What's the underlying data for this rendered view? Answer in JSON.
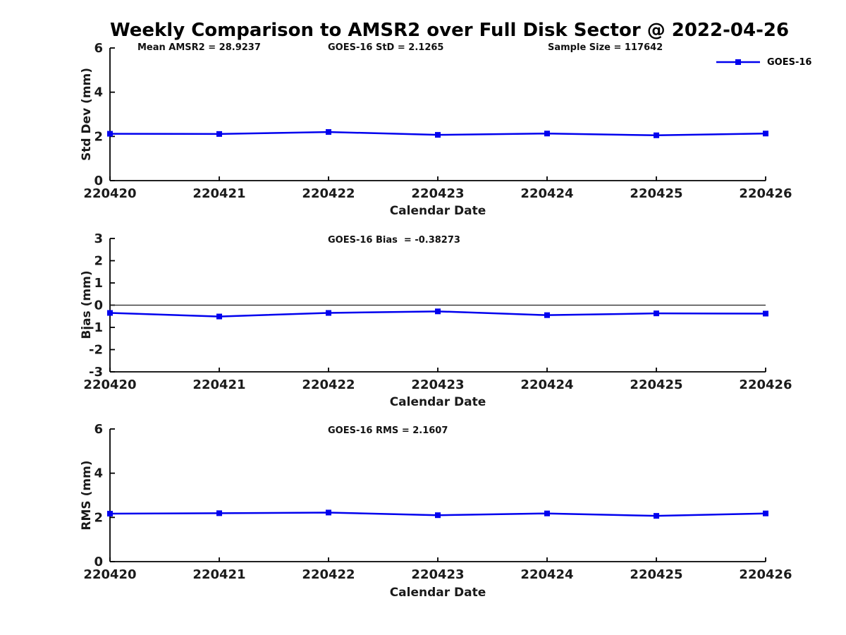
{
  "title": "Weekly Comparison to AMSR2 over Full Disk Sector @ 2022-04-26",
  "colors": {
    "line": "#0000ee",
    "axis": "#000000",
    "tick_text": "#1a1a1a",
    "zero_line": "#222222"
  },
  "legend": {
    "label": "GOES-16",
    "position": "top-right"
  },
  "chart_data": [
    {
      "type": "line",
      "title": "Weekly Comparison to AMSR2 over Full Disk Sector @ 2022-04-26",
      "annotations": [
        "Mean AMSR2 = 28.9237",
        "GOES-16 StD = 2.1265",
        "Sample Size = 117642"
      ],
      "categories": [
        "220420",
        "220421",
        "220422",
        "220423",
        "220424",
        "220425",
        "220426"
      ],
      "series": [
        {
          "name": "GOES-16",
          "values": [
            2.12,
            2.11,
            2.2,
            2.07,
            2.13,
            2.05,
            2.13
          ]
        }
      ],
      "xlabel": "Calendar Date",
      "ylabel": "Std Dev (mm)",
      "ylim": [
        0,
        6
      ],
      "yticks": [
        0,
        2,
        4,
        6
      ],
      "zero_line": false,
      "grid": false,
      "legend_position": "top-right",
      "marker": "square"
    },
    {
      "type": "line",
      "title": "",
      "annotations": [
        "GOES-16 Bias  = -0.38273"
      ],
      "categories": [
        "220420",
        "220421",
        "220422",
        "220423",
        "220424",
        "220425",
        "220426"
      ],
      "series": [
        {
          "name": "GOES-16",
          "values": [
            -0.35,
            -0.51,
            -0.35,
            -0.28,
            -0.45,
            -0.37,
            -0.38
          ]
        }
      ],
      "xlabel": "Calendar Date",
      "ylabel": "Bias (mm)",
      "ylim": [
        -3,
        3
      ],
      "yticks": [
        -3,
        -2,
        -1,
        0,
        1,
        2,
        3
      ],
      "zero_line": true,
      "grid": false,
      "marker": "square"
    },
    {
      "type": "line",
      "title": "",
      "annotations": [
        "GOES-16 RMS = 2.1607"
      ],
      "categories": [
        "220420",
        "220421",
        "220422",
        "220423",
        "220424",
        "220425",
        "220426"
      ],
      "series": [
        {
          "name": "GOES-16",
          "values": [
            2.17,
            2.19,
            2.22,
            2.1,
            2.18,
            2.07,
            2.18
          ]
        }
      ],
      "xlabel": "Calendar Date",
      "ylabel": "RMS (mm)",
      "ylim": [
        0,
        6
      ],
      "yticks": [
        0,
        2,
        4,
        6
      ],
      "zero_line": false,
      "grid": false,
      "marker": "square"
    }
  ]
}
